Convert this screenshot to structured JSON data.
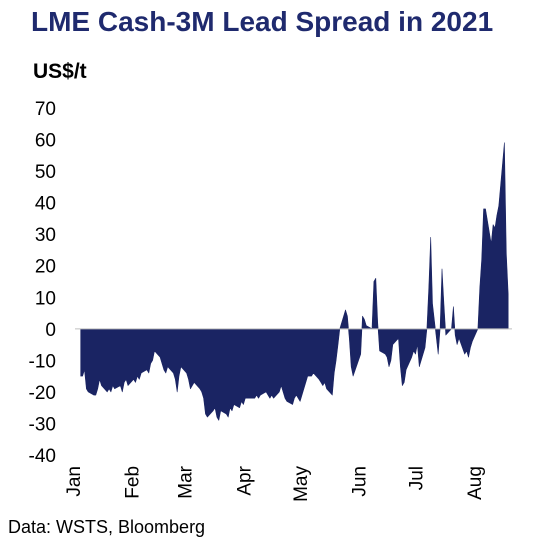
{
  "title": "LME Cash-3M Lead Spread in 2021",
  "unit_label": "US$/t",
  "source": "Data: WSTS, Bloomberg",
  "chart_data": {
    "type": "area",
    "title": "LME Cash-3M Lead Spread in 2021",
    "ylabel": "US$/t",
    "xlabel": "",
    "ylim": [
      -40,
      70
    ],
    "yticks": [
      70,
      60,
      50,
      40,
      30,
      20,
      10,
      0,
      -10,
      -20,
      -30,
      -40
    ],
    "xticks": [
      "Jan",
      "Feb",
      "Mar",
      "Apr",
      "May",
      "Jun",
      "Jul",
      "Aug"
    ],
    "grid": false,
    "fill_color": "#1a2463",
    "series": [
      {
        "values": [
          [
            "2021-01-04",
            -15
          ],
          [
            "2021-01-05",
            -15
          ],
          [
            "2021-01-06",
            -13
          ],
          [
            "2021-01-07",
            -19
          ],
          [
            "2021-01-08",
            -20
          ],
          [
            "2021-01-11",
            -21
          ],
          [
            "2021-01-12",
            -21
          ],
          [
            "2021-01-13",
            -19
          ],
          [
            "2021-01-14",
            -16
          ],
          [
            "2021-01-15",
            -18
          ],
          [
            "2021-01-18",
            -20
          ],
          [
            "2021-01-19",
            -19
          ],
          [
            "2021-01-20",
            -20
          ],
          [
            "2021-01-21",
            -18
          ],
          [
            "2021-01-22",
            -19
          ],
          [
            "2021-01-25",
            -18
          ],
          [
            "2021-01-26",
            -20
          ],
          [
            "2021-01-27",
            -17
          ],
          [
            "2021-01-28",
            -16
          ],
          [
            "2021-01-29",
            -18
          ],
          [
            "2021-02-01",
            -16
          ],
          [
            "2021-02-02",
            -17
          ],
          [
            "2021-02-03",
            -15
          ],
          [
            "2021-02-04",
            -16
          ],
          [
            "2021-02-05",
            -14
          ],
          [
            "2021-02-08",
            -13
          ],
          [
            "2021-02-09",
            -14
          ],
          [
            "2021-02-10",
            -11
          ],
          [
            "2021-02-11",
            -10
          ],
          [
            "2021-02-12",
            -7
          ],
          [
            "2021-02-15",
            -9
          ],
          [
            "2021-02-16",
            -11
          ],
          [
            "2021-02-17",
            -13
          ],
          [
            "2021-02-18",
            -14
          ],
          [
            "2021-02-19",
            -12
          ],
          [
            "2021-02-22",
            -14
          ],
          [
            "2021-02-23",
            -16
          ],
          [
            "2021-02-24",
            -20
          ],
          [
            "2021-02-25",
            -15
          ],
          [
            "2021-02-26",
            -12
          ],
          [
            "2021-03-01",
            -14
          ],
          [
            "2021-03-02",
            -16
          ],
          [
            "2021-03-03",
            -19
          ],
          [
            "2021-03-04",
            -18
          ],
          [
            "2021-03-05",
            -17
          ],
          [
            "2021-03-08",
            -19
          ],
          [
            "2021-03-09",
            -20
          ],
          [
            "2021-03-10",
            -22
          ],
          [
            "2021-03-11",
            -27
          ],
          [
            "2021-03-12",
            -28
          ],
          [
            "2021-03-15",
            -26
          ],
          [
            "2021-03-16",
            -25
          ],
          [
            "2021-03-17",
            -28
          ],
          [
            "2021-03-18",
            -29
          ],
          [
            "2021-03-19",
            -26
          ],
          [
            "2021-03-22",
            -27
          ],
          [
            "2021-03-23",
            -28
          ],
          [
            "2021-03-24",
            -25
          ],
          [
            "2021-03-25",
            -26
          ],
          [
            "2021-03-26",
            -24
          ],
          [
            "2021-03-29",
            -25
          ],
          [
            "2021-03-30",
            -23
          ],
          [
            "2021-03-31",
            -24
          ],
          [
            "2021-04-01",
            -22
          ],
          [
            "2021-04-06",
            -22
          ],
          [
            "2021-04-07",
            -21
          ],
          [
            "2021-04-08",
            -22
          ],
          [
            "2021-04-09",
            -21
          ],
          [
            "2021-04-12",
            -20
          ],
          [
            "2021-04-13",
            -21
          ],
          [
            "2021-04-14",
            -22
          ],
          [
            "2021-04-15",
            -21
          ],
          [
            "2021-04-16",
            -22
          ],
          [
            "2021-04-19",
            -20
          ],
          [
            "2021-04-20",
            -18
          ],
          [
            "2021-04-21",
            -20
          ],
          [
            "2021-04-22",
            -22
          ],
          [
            "2021-04-23",
            -23
          ],
          [
            "2021-04-26",
            -24
          ],
          [
            "2021-04-27",
            -22
          ],
          [
            "2021-04-28",
            -21
          ],
          [
            "2021-04-29",
            -22
          ],
          [
            "2021-04-30",
            -23
          ],
          [
            "2021-05-04",
            -15
          ],
          [
            "2021-05-05",
            -15
          ],
          [
            "2021-05-06",
            -15
          ],
          [
            "2021-05-07",
            -14
          ],
          [
            "2021-05-10",
            -16
          ],
          [
            "2021-05-11",
            -17
          ],
          [
            "2021-05-12",
            -18
          ],
          [
            "2021-05-13",
            -17
          ],
          [
            "2021-05-14",
            -19
          ],
          [
            "2021-05-17",
            -21
          ],
          [
            "2021-05-18",
            -14
          ],
          [
            "2021-05-19",
            -10
          ],
          [
            "2021-05-20",
            -5
          ],
          [
            "2021-05-21",
            0
          ],
          [
            "2021-05-24",
            6
          ],
          [
            "2021-05-25",
            4
          ],
          [
            "2021-05-26",
            -3
          ],
          [
            "2021-05-27",
            -12
          ],
          [
            "2021-05-28",
            -15
          ],
          [
            "2021-06-01",
            -8
          ],
          [
            "2021-06-02",
            4
          ],
          [
            "2021-06-03",
            3
          ],
          [
            "2021-06-04",
            1
          ],
          [
            "2021-06-07",
            0
          ],
          [
            "2021-06-08",
            15
          ],
          [
            "2021-06-09",
            16
          ],
          [
            "2021-06-10",
            2
          ],
          [
            "2021-06-11",
            -7
          ],
          [
            "2021-06-14",
            -8
          ],
          [
            "2021-06-15",
            -9
          ],
          [
            "2021-06-16",
            -12
          ],
          [
            "2021-06-17",
            -10
          ],
          [
            "2021-06-18",
            -5
          ],
          [
            "2021-06-21",
            -3
          ],
          [
            "2021-06-22",
            -12
          ],
          [
            "2021-06-23",
            -18
          ],
          [
            "2021-06-24",
            -17
          ],
          [
            "2021-06-25",
            -13
          ],
          [
            "2021-06-28",
            -9
          ],
          [
            "2021-06-29",
            -7
          ],
          [
            "2021-06-30",
            -8
          ],
          [
            "2021-07-01",
            -5
          ],
          [
            "2021-07-02",
            -12
          ],
          [
            "2021-07-05",
            -6
          ],
          [
            "2021-07-06",
            0
          ],
          [
            "2021-07-07",
            13
          ],
          [
            "2021-07-08",
            29
          ],
          [
            "2021-07-09",
            8
          ],
          [
            "2021-07-12",
            -8
          ],
          [
            "2021-07-13",
            0
          ],
          [
            "2021-07-14",
            19
          ],
          [
            "2021-07-15",
            8
          ],
          [
            "2021-07-16",
            -2
          ],
          [
            "2021-07-19",
            0
          ],
          [
            "2021-07-20",
            7
          ],
          [
            "2021-07-21",
            -2
          ],
          [
            "2021-07-22",
            -5
          ],
          [
            "2021-07-23",
            -3
          ],
          [
            "2021-07-26",
            -8
          ],
          [
            "2021-07-27",
            -7
          ],
          [
            "2021-07-28",
            -9
          ],
          [
            "2021-07-29",
            -6
          ],
          [
            "2021-07-30",
            -4
          ],
          [
            "2021-08-02",
            0
          ],
          [
            "2021-08-03",
            13
          ],
          [
            "2021-08-04",
            22
          ],
          [
            "2021-08-05",
            38
          ],
          [
            "2021-08-06",
            38
          ],
          [
            "2021-08-09",
            27
          ],
          [
            "2021-08-10",
            33
          ],
          [
            "2021-08-11",
            32
          ],
          [
            "2021-08-12",
            36
          ],
          [
            "2021-08-13",
            39
          ],
          [
            "2021-08-16",
            59
          ],
          [
            "2021-08-17",
            24
          ],
          [
            "2021-08-18",
            11
          ]
        ]
      }
    ]
  }
}
